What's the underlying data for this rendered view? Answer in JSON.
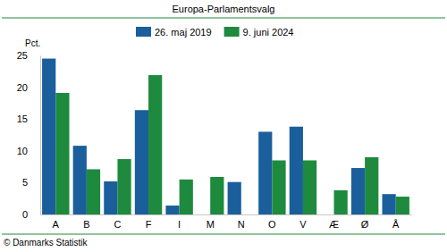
{
  "chart_data": {
    "type": "bar",
    "title": "Europa-Parlamentsvalg",
    "y_label": "Pct.",
    "source": "© Danmarks Statistik",
    "categories": [
      "A",
      "B",
      "C",
      "F",
      "I",
      "M",
      "N",
      "O",
      "V",
      "Æ",
      "Ø",
      "Å"
    ],
    "series": [
      {
        "name": "26. maj 2019",
        "color": "#1a5f9c",
        "values": [
          24.5,
          10.8,
          5.2,
          16.4,
          1.4,
          null,
          5.1,
          13.0,
          13.8,
          null,
          7.3,
          3.2
        ]
      },
      {
        "name": "9. juni 2024",
        "color": "#1d8a3e",
        "values": [
          19.1,
          7.1,
          8.7,
          21.9,
          5.5,
          5.9,
          null,
          8.5,
          8.5,
          3.8,
          9.0,
          2.8
        ]
      }
    ],
    "ylim": [
      0,
      25
    ],
    "yticks": [
      0,
      5,
      10,
      15,
      20,
      25
    ],
    "grid": false,
    "legend": "top"
  }
}
